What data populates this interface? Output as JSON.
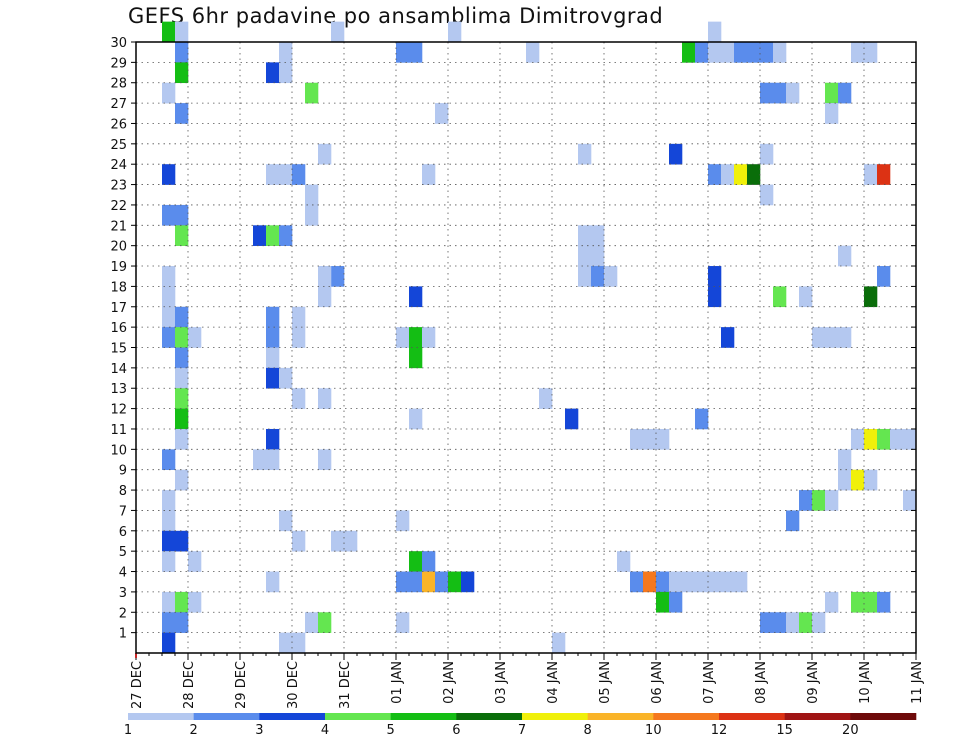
{
  "chart_data": {
    "type": "heatmap",
    "title": "GEFS 6hr padavine po ansamblima Dimitrovgrad",
    "xlabel": "",
    "ylabel": "",
    "x_ticks": [
      "27 DEC",
      "28 DEC",
      "29 DEC",
      "30 DEC",
      "31 DEC",
      "01 JAN",
      "02 JAN",
      "03 JAN",
      "04 JAN",
      "05 JAN",
      "06 JAN",
      "07 JAN",
      "08 JAN",
      "09 JAN",
      "10 JAN",
      "11 JAN"
    ],
    "y_ticks": [
      "1",
      "2",
      "3",
      "4",
      "5",
      "6",
      "7",
      "8",
      "9",
      "10",
      "11",
      "12",
      "13",
      "14",
      "15",
      "16",
      "17",
      "18",
      "19",
      "20",
      "21",
      "22",
      "23",
      "24",
      "25",
      "26",
      "27",
      "28",
      "29",
      "30"
    ],
    "x_unit": "6-hour step from 27 DEC 00z",
    "x_range": [
      0,
      60
    ],
    "y_range": [
      0,
      30
    ],
    "grid": true,
    "colorbar": {
      "levels": [
        "1",
        "2",
        "3",
        "4",
        "5",
        "6",
        "7",
        "8",
        "10",
        "12",
        "15",
        "20"
      ],
      "colors": [
        "#b4c8f0",
        "#5a8cec",
        "#1446d8",
        "#64e650",
        "#14be14",
        "#0a6e0a",
        "#f0f00a",
        "#fab428",
        "#f5781e",
        "#dc3214",
        "#a01414",
        "#6e0a0a"
      ]
    },
    "cells": [
      {
        "m": 30,
        "s": [
          [
            2,
            1,
            5
          ],
          [
            3,
            1,
            1
          ],
          [
            15,
            1,
            1
          ],
          [
            24,
            1,
            1
          ],
          [
            44,
            1,
            1
          ]
        ]
      },
      {
        "m": 29,
        "s": [
          [
            3,
            1,
            2
          ],
          [
            11,
            1,
            1
          ],
          [
            20,
            2,
            2
          ],
          [
            30,
            1,
            1
          ],
          [
            42,
            1,
            5
          ],
          [
            43,
            1,
            2
          ],
          [
            44,
            2,
            1
          ],
          [
            46,
            3,
            2
          ],
          [
            49,
            1,
            1
          ],
          [
            55,
            2,
            1
          ]
        ]
      },
      {
        "m": 28,
        "s": [
          [
            3,
            1,
            5
          ],
          [
            10,
            1,
            3
          ],
          [
            11,
            1,
            1
          ]
        ]
      },
      {
        "m": 27,
        "s": [
          [
            2,
            1,
            1
          ],
          [
            13,
            1,
            4
          ],
          [
            48,
            2,
            2
          ],
          [
            50,
            1,
            1
          ],
          [
            53,
            1,
            4
          ],
          [
            54,
            1,
            2
          ]
        ]
      },
      {
        "m": 26,
        "s": [
          [
            3,
            1,
            2
          ],
          [
            23,
            1,
            1
          ],
          [
            53,
            1,
            1
          ]
        ]
      },
      {
        "m": 24,
        "s": [
          [
            14,
            1,
            1
          ],
          [
            34,
            1,
            1
          ],
          [
            41,
            1,
            3
          ],
          [
            48,
            1,
            1
          ]
        ]
      },
      {
        "m": 23,
        "s": [
          [
            2,
            1,
            3
          ],
          [
            10,
            2,
            1
          ],
          [
            12,
            1,
            2
          ],
          [
            22,
            1,
            1
          ],
          [
            44,
            1,
            2
          ],
          [
            45,
            1,
            1
          ],
          [
            46,
            1,
            7
          ],
          [
            47,
            1,
            6
          ],
          [
            56,
            1,
            1
          ],
          [
            57,
            1,
            10
          ]
        ]
      },
      {
        "m": 22,
        "s": [
          [
            13,
            1,
            1
          ],
          [
            48,
            1,
            1
          ]
        ]
      },
      {
        "m": 21,
        "s": [
          [
            2,
            2,
            2
          ],
          [
            13,
            1,
            1
          ]
        ]
      },
      {
        "m": 20,
        "s": [
          [
            3,
            1,
            4
          ],
          [
            9,
            1,
            3
          ],
          [
            10,
            1,
            4
          ],
          [
            11,
            1,
            2
          ],
          [
            34,
            2,
            1
          ]
        ]
      },
      {
        "m": 19,
        "s": [
          [
            34,
            2,
            1
          ],
          [
            54,
            1,
            1
          ]
        ]
      },
      {
        "m": 18,
        "s": [
          [
            14,
            2,
            2
          ],
          [
            2,
            1,
            1
          ],
          [
            14,
            1,
            1
          ],
          [
            34,
            1,
            1
          ],
          [
            35,
            1,
            2
          ],
          [
            36,
            1,
            1
          ],
          [
            44,
            1,
            3
          ],
          [
            57,
            1,
            2
          ]
        ]
      },
      {
        "m": 17,
        "s": [
          [
            2,
            1,
            1
          ],
          [
            14,
            1,
            1
          ],
          [
            21,
            1,
            3
          ],
          [
            44,
            1,
            3
          ],
          [
            49,
            1,
            4
          ],
          [
            51,
            1,
            1
          ],
          [
            56,
            1,
            6
          ]
        ]
      },
      {
        "m": 16,
        "s": [
          [
            2,
            1,
            1
          ],
          [
            3,
            1,
            2
          ],
          [
            10,
            1,
            2
          ],
          [
            12,
            1,
            1
          ]
        ]
      },
      {
        "m": 15,
        "s": [
          [
            2,
            1,
            2
          ],
          [
            3,
            1,
            4
          ],
          [
            4,
            1,
            1
          ],
          [
            10,
            1,
            2
          ],
          [
            12,
            1,
            1
          ],
          [
            20,
            1,
            1
          ],
          [
            21,
            1,
            5
          ],
          [
            22,
            1,
            1
          ],
          [
            45,
            1,
            3
          ],
          [
            52,
            3,
            1
          ]
        ]
      },
      {
        "m": 14,
        "s": [
          [
            3,
            1,
            2
          ],
          [
            10,
            1,
            1
          ],
          [
            21,
            1,
            5
          ]
        ]
      },
      {
        "m": 13,
        "s": [
          [
            3,
            1,
            1
          ],
          [
            10,
            1,
            3
          ],
          [
            11,
            1,
            1
          ]
        ]
      },
      {
        "m": 12,
        "s": [
          [
            3,
            1,
            4
          ],
          [
            12,
            1,
            1
          ],
          [
            14,
            1,
            1
          ],
          [
            31,
            1,
            1
          ]
        ]
      },
      {
        "m": 11,
        "s": [
          [
            3,
            1,
            5
          ],
          [
            21,
            1,
            1
          ],
          [
            33,
            1,
            3
          ],
          [
            43,
            1,
            2
          ]
        ]
      },
      {
        "m": 10,
        "s": [
          [
            3,
            1,
            1
          ],
          [
            10,
            1,
            3
          ],
          [
            38,
            3,
            1
          ],
          [
            55,
            1,
            1
          ],
          [
            56,
            1,
            7
          ],
          [
            57,
            1,
            4
          ],
          [
            58,
            2,
            1
          ]
        ]
      },
      {
        "m": 9,
        "s": [
          [
            2,
            1,
            2
          ],
          [
            9,
            2,
            1
          ],
          [
            14,
            1,
            1
          ],
          [
            54,
            1,
            1
          ]
        ]
      },
      {
        "m": 8,
        "s": [
          [
            3,
            1,
            1
          ],
          [
            54,
            1,
            1
          ],
          [
            55,
            1,
            7
          ],
          [
            56,
            1,
            1
          ]
        ]
      },
      {
        "m": 7,
        "s": [
          [
            2,
            1,
            1
          ],
          [
            51,
            1,
            2
          ],
          [
            52,
            1,
            4
          ],
          [
            53,
            1,
            1
          ],
          [
            59,
            1,
            1
          ]
        ]
      },
      {
        "m": 6,
        "s": [
          [
            2,
            1,
            1
          ],
          [
            11,
            1,
            1
          ],
          [
            20,
            1,
            1
          ],
          [
            50,
            1,
            2
          ]
        ]
      },
      {
        "m": 5,
        "s": [
          [
            2,
            2,
            3
          ],
          [
            12,
            1,
            1
          ],
          [
            15,
            2,
            1
          ]
        ]
      },
      {
        "m": 4,
        "s": [
          [
            2,
            1,
            1
          ],
          [
            4,
            1,
            1
          ],
          [
            21,
            1,
            5
          ],
          [
            22,
            1,
            2
          ],
          [
            37,
            1,
            1
          ]
        ]
      },
      {
        "m": 3,
        "s": [
          [
            10,
            1,
            1
          ],
          [
            20,
            2,
            2
          ],
          [
            22,
            1,
            8
          ],
          [
            23,
            1,
            2
          ],
          [
            24,
            1,
            5
          ],
          [
            25,
            1,
            3
          ],
          [
            38,
            1,
            2
          ],
          [
            39,
            1,
            9
          ],
          [
            40,
            1,
            2
          ],
          [
            41,
            6,
            1
          ]
        ]
      },
      {
        "m": 2,
        "s": [
          [
            2,
            1,
            1
          ],
          [
            3,
            1,
            4
          ],
          [
            4,
            1,
            1
          ],
          [
            40,
            1,
            5
          ],
          [
            41,
            1,
            2
          ],
          [
            53,
            1,
            1
          ],
          [
            55,
            2,
            4
          ],
          [
            57,
            1,
            2
          ]
        ]
      },
      {
        "m": 1,
        "s": [
          [
            2,
            2,
            2
          ],
          [
            13,
            1,
            1
          ],
          [
            14,
            1,
            4
          ],
          [
            20,
            1,
            1
          ],
          [
            48,
            2,
            2
          ],
          [
            50,
            1,
            1
          ],
          [
            51,
            1,
            4
          ],
          [
            52,
            1,
            1
          ]
        ]
      },
      {
        "m": 0,
        "s": [
          [
            2,
            1,
            3
          ],
          [
            11,
            2,
            1
          ],
          [
            32,
            1,
            1
          ]
        ]
      }
    ]
  }
}
